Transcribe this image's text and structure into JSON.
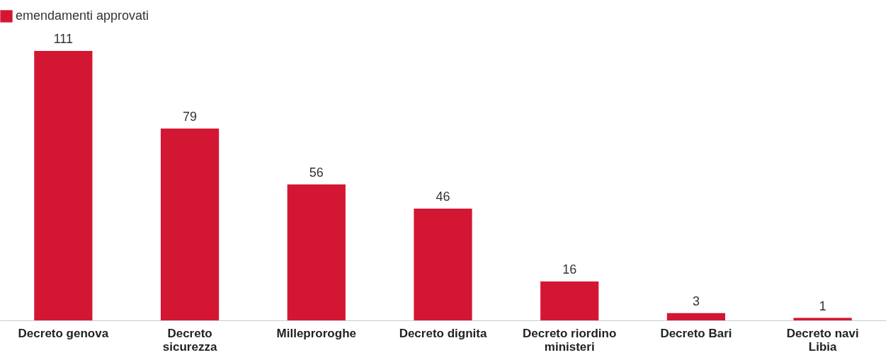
{
  "chart_data": {
    "type": "bar",
    "categories": [
      "Decreto genova",
      "Decreto sicurezza",
      "Milleproroghe",
      "Decreto dignita",
      "Decreto riordino ministeri",
      "Decreto Bari",
      "Decreto navi Libia"
    ],
    "series": [
      {
        "name": "emendamenti approvati",
        "color": "#d31733",
        "values": [
          111,
          79,
          56,
          46,
          16,
          3,
          1
        ]
      }
    ],
    "data_labels": true,
    "legend": "top left",
    "grid": false
  }
}
